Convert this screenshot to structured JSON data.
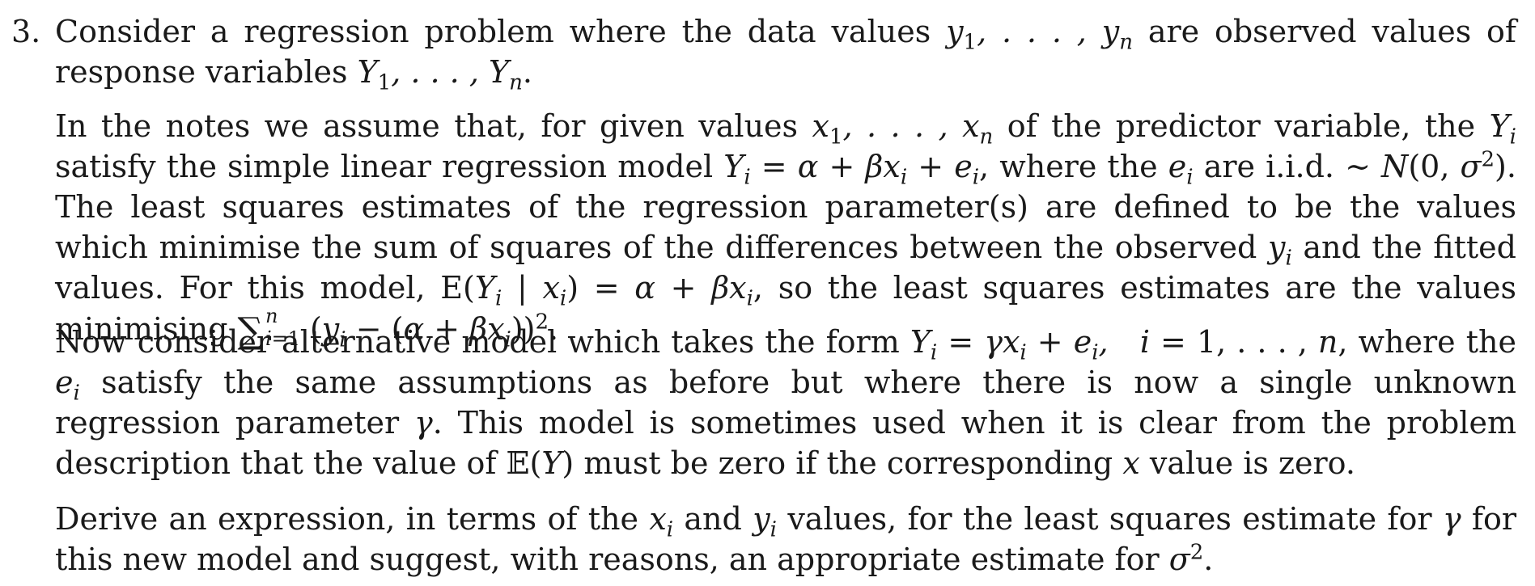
{
  "question": {
    "number": "3.",
    "p1": {
      "t1": "Consider a regression problem where the data values",
      "t2": "are observed values of response variables"
    },
    "p2": {
      "t1": "In the notes we assume that, for given values",
      "t2": "of the predictor variable, the",
      "t3": "satisfy the simple linear regression model",
      "t4": ", where the",
      "t5": "are i.i.d.",
      "t6": ". The least squares estimates of the regression parameter(s) are defined to be the values which minimise the sum of squares of the differences between the observed",
      "t7": "and the fitted values. For this model,",
      "t8": ", so the least squares estimates are the values minimising"
    },
    "p3": {
      "t1": "Now consider alternative model which takes the form",
      "t2": ", where the",
      "t3": "satisfy the same assumptions as before but where there is now a single unknown regression parameter",
      "t4": ". This model is sometimes used when it is clear from the problem description that the value of",
      "t5": "must be zero if the corresponding",
      "t6": "value is zero."
    },
    "p4": {
      "t1": "Derive an expression, in terms of the",
      "t2": "and",
      "t3": "values, for the least squares estimate for",
      "t4": "for this new model and suggest, with reasons, an appropriate estimate for"
    }
  }
}
